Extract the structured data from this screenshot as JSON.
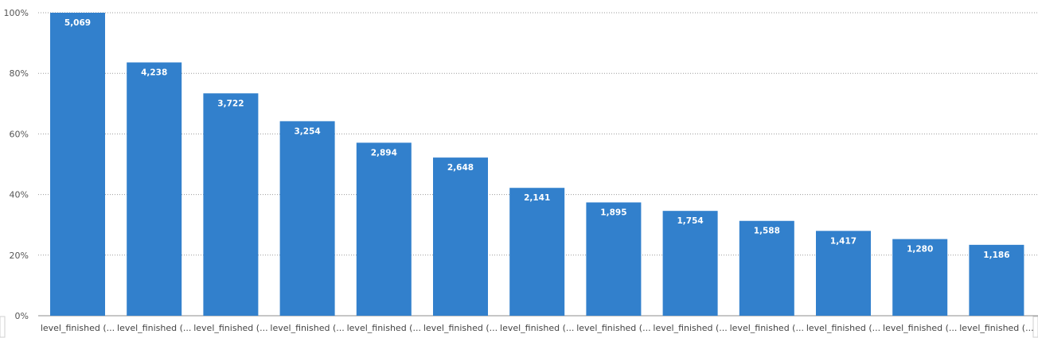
{
  "chart_data": {
    "type": "bar",
    "categories": [
      "level_finished (...",
      "level_finished (...",
      "level_finished (...",
      "level_finished (...",
      "level_finished (...",
      "level_finished (...",
      "level_finished (...",
      "level_finished (...",
      "level_finished (...",
      "level_finished (...",
      "level_finished (...",
      "level_finished (...",
      "level_finished (..."
    ],
    "values": [
      5069,
      4238,
      3722,
      3254,
      2894,
      2648,
      2141,
      1895,
      1754,
      1588,
      1417,
      1280,
      1186
    ],
    "data_labels": [
      "5,069",
      "4,238",
      "3,722",
      "3,254",
      "2,894",
      "2,648",
      "2,141",
      "1,895",
      "1,754",
      "1,588",
      "1,417",
      "1,280",
      "1,186"
    ],
    "percent_of_first": [
      100,
      83.6,
      73.4,
      64.2,
      57.1,
      52.2,
      42.2,
      37.4,
      34.6,
      31.3,
      28.0,
      25.3,
      23.4
    ],
    "y_ticks": [
      "0%",
      "20%",
      "40%",
      "60%",
      "80%",
      "100%"
    ],
    "ylim": [
      0,
      100
    ],
    "grid": true,
    "bar_color": "#3280cc",
    "title": "",
    "xlabel": "",
    "ylabel": ""
  }
}
